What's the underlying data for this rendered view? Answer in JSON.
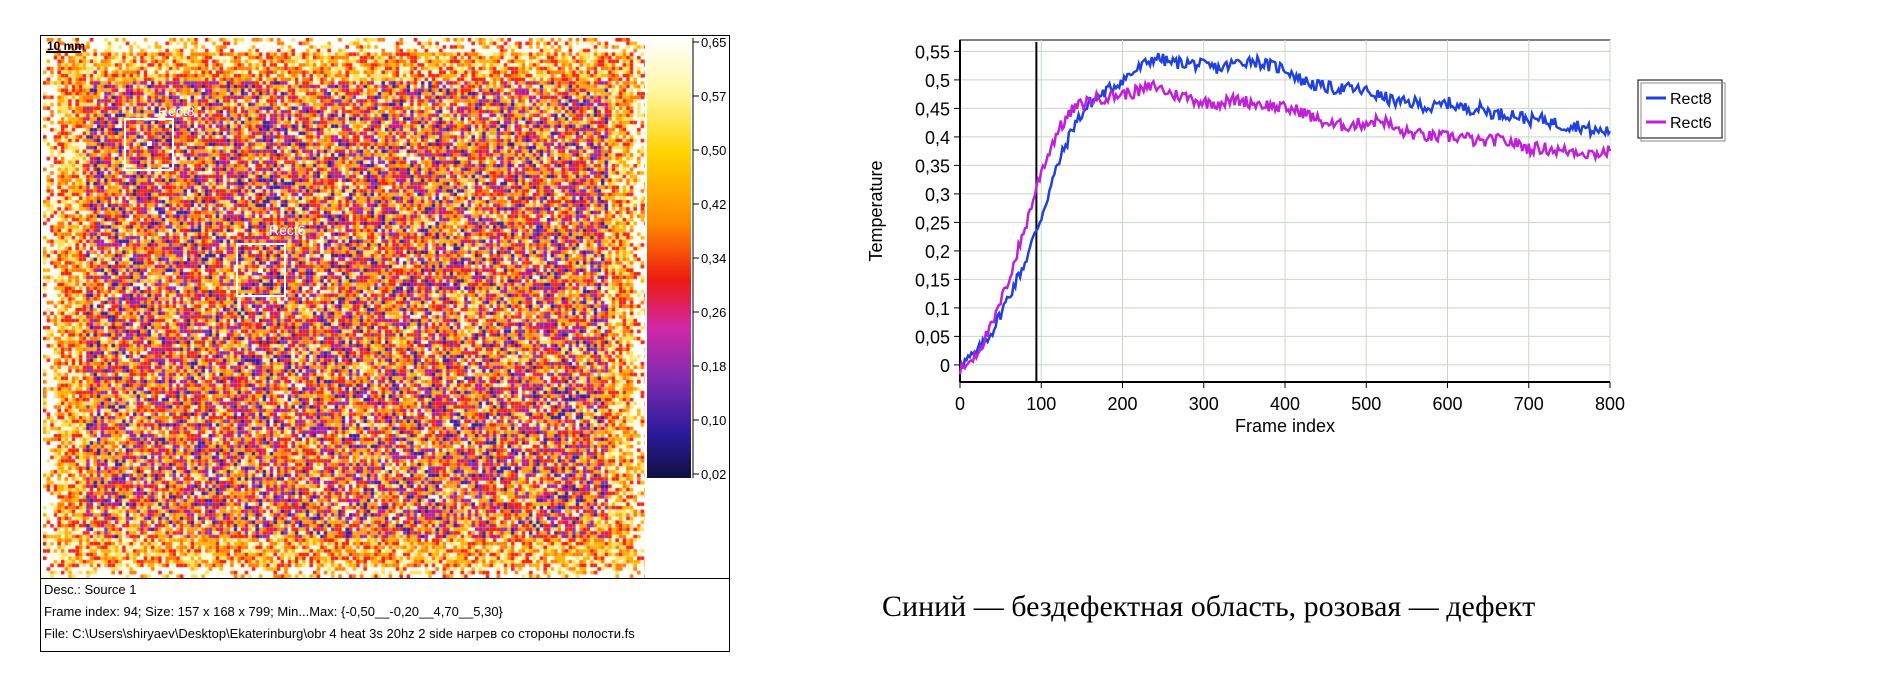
{
  "thermogram": {
    "scale_label": "10 mm",
    "regions": [
      {
        "label": "Rect8"
      },
      {
        "label": "Rect6"
      }
    ],
    "colorbar_ticks": [
      "0,65",
      "0,57",
      "0,50",
      "0,42",
      "0,34",
      "0,26",
      "0,18",
      "0,10",
      "0,02"
    ],
    "info": {
      "desc": "Desc.:  Source 1",
      "frame": "Frame index:  94; Size:  157 x 168 x 799; Min...Max:  {-0,50__-0,20__4,70__5,30}",
      "file": "File: C:\\Users\\shiryaev\\Desktop\\Ekaterinburg\\obr 4 heat 3s 20hz 2 side нагрев со стороны полости.fs"
    },
    "colors": {
      "rect": "#ffffff"
    }
  },
  "chart_data": {
    "type": "line",
    "xlabel": "Frame index",
    "ylabel": "Temperature",
    "xlim": [
      0,
      800
    ],
    "ylim": [
      -0.03,
      0.57
    ],
    "x_ticks": [
      0,
      100,
      200,
      300,
      400,
      500,
      600,
      700,
      800
    ],
    "y_ticks": [
      "0",
      "0,05",
      "0,1",
      "0,15",
      "0,2",
      "0,25",
      "0,3",
      "0,35",
      "0,4",
      "0,45",
      "0,5",
      "0,55"
    ],
    "y_tick_values": [
      0,
      0.05,
      0.1,
      0.15,
      0.2,
      0.25,
      0.3,
      0.35,
      0.4,
      0.45,
      0.5,
      0.55
    ],
    "grid": true,
    "legend": "right",
    "marker_x": 94,
    "series": [
      {
        "name": "Rect8",
        "color": "#2040e0",
        "x": [
          0,
          20,
          40,
          60,
          80,
          100,
          120,
          140,
          160,
          180,
          200,
          220,
          240,
          260,
          280,
          300,
          320,
          340,
          360,
          380,
          400,
          420,
          440,
          460,
          480,
          500,
          520,
          540,
          560,
          580,
          600,
          620,
          640,
          660,
          680,
          700,
          720,
          740,
          760,
          780,
          800
        ],
        "values": [
          0.0,
          0.02,
          0.06,
          0.12,
          0.18,
          0.26,
          0.35,
          0.42,
          0.46,
          0.48,
          0.5,
          0.52,
          0.54,
          0.53,
          0.53,
          0.525,
          0.52,
          0.53,
          0.535,
          0.525,
          0.52,
          0.5,
          0.49,
          0.485,
          0.485,
          0.48,
          0.47,
          0.46,
          0.46,
          0.45,
          0.46,
          0.45,
          0.45,
          0.44,
          0.44,
          0.43,
          0.43,
          0.42,
          0.42,
          0.41,
          0.41
        ]
      },
      {
        "name": "Rect6",
        "color": "#c020d8",
        "x": [
          0,
          20,
          40,
          60,
          80,
          100,
          120,
          140,
          160,
          180,
          200,
          220,
          240,
          260,
          280,
          300,
          320,
          340,
          360,
          380,
          400,
          420,
          440,
          460,
          480,
          500,
          520,
          540,
          560,
          580,
          600,
          620,
          640,
          660,
          680,
          700,
          720,
          740,
          760,
          780,
          800
        ],
        "values": [
          -0.01,
          0.02,
          0.07,
          0.15,
          0.24,
          0.34,
          0.41,
          0.45,
          0.465,
          0.47,
          0.475,
          0.48,
          0.49,
          0.475,
          0.47,
          0.46,
          0.46,
          0.465,
          0.46,
          0.455,
          0.45,
          0.445,
          0.43,
          0.42,
          0.42,
          0.425,
          0.43,
          0.41,
          0.405,
          0.4,
          0.4,
          0.4,
          0.39,
          0.395,
          0.39,
          0.38,
          0.38,
          0.375,
          0.375,
          0.37,
          0.375
        ]
      }
    ]
  },
  "caption": "Синий — бездефектная область, розовая — дефект"
}
